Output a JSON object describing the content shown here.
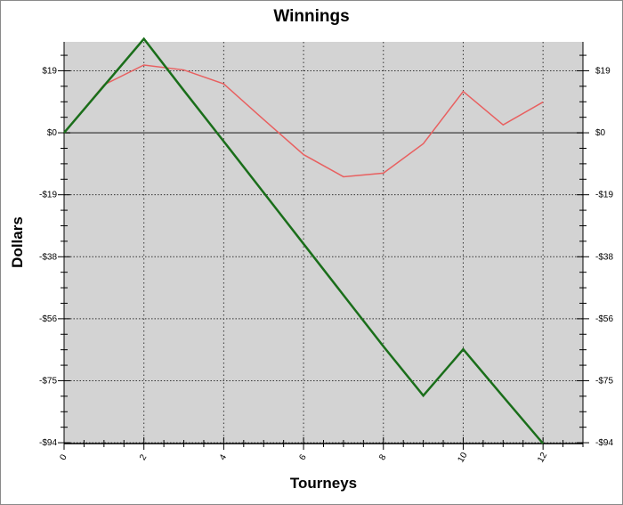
{
  "chart_data": {
    "type": "line",
    "title": "Winnings",
    "xlabel": "Tourneys",
    "ylabel": "Dollars",
    "xlim": [
      0,
      13
    ],
    "ylim": [
      -94,
      27.5
    ],
    "x_ticks": [
      "0",
      "2",
      "4",
      "6",
      "8",
      "10",
      "12"
    ],
    "y_ticks": [
      {
        "value": 18.75,
        "label": "$19"
      },
      {
        "value": 0,
        "label": "$0"
      },
      {
        "value": -18.75,
        "label": "-$19"
      },
      {
        "value": -37.5,
        "label": "-$38"
      },
      {
        "value": -56.25,
        "label": "-$56"
      },
      {
        "value": -75,
        "label": "-$75"
      },
      {
        "value": -93.75,
        "label": "-$94"
      }
    ],
    "grid": true,
    "background": "#d3d3d3",
    "x": [
      0,
      1,
      2,
      3,
      4,
      5,
      6,
      7,
      8,
      9,
      10,
      11,
      12
    ],
    "series": [
      {
        "color": "#e86060",
        "width": 1.5,
        "values": [
          0,
          14.5,
          20.5,
          19,
          14.8,
          4,
          -6.6,
          -13.3,
          -12.2,
          -3.3,
          12.5,
          2.4,
          9.3
        ]
      },
      {
        "color": "#1a6e1a",
        "width": 2.5,
        "values": [
          0,
          14.2,
          28.4,
          12.8,
          -2.6,
          -18.1,
          -33.6,
          -49.1,
          -64.6,
          -79.5,
          -65.5,
          -79.8,
          -94
        ]
      }
    ]
  }
}
